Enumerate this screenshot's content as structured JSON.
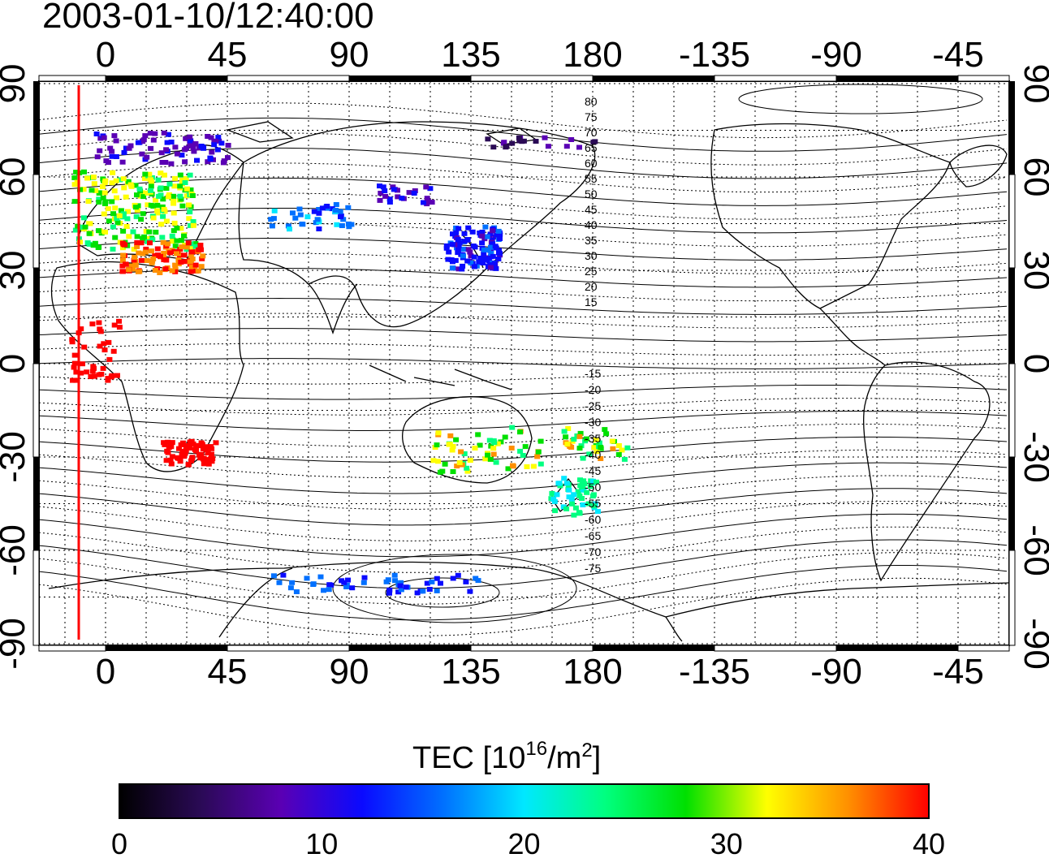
{
  "title": "2003-01-10/12:40:00",
  "map": {
    "lon_ticks": [
      "0",
      "45",
      "90",
      "135",
      "180",
      "-135",
      "-90",
      "-45"
    ],
    "lat_ticks_left": [
      "90",
      "60",
      "30",
      "0",
      "-30",
      "-60",
      "-90"
    ],
    "lat_ticks_right": [
      "90",
      "60",
      "30",
      "0",
      "-30",
      "-60",
      "-90"
    ],
    "terminator_color": "#ff0000",
    "contour_labels_north": [
      "80",
      "75",
      "70",
      "65",
      "60",
      "55",
      "50",
      "45",
      "40",
      "35",
      "30",
      "25",
      "20",
      "15"
    ],
    "contour_labels_south": [
      "-15",
      "-20",
      "-25",
      "-30",
      "-35",
      "-40",
      "-45",
      "-50",
      "-55",
      "-60",
      "-65",
      "-70",
      "-75"
    ]
  },
  "colorbar": {
    "title_main": "TEC  [10",
    "title_sup1": "16",
    "title_mid": "/m",
    "title_sup2": "2",
    "title_end": "]",
    "ticks": [
      "0",
      "10",
      "20",
      "30",
      "40"
    ],
    "colors": [
      "#000000",
      "#2a0a55",
      "#5a00b4",
      "#0a0aff",
      "#0070ff",
      "#00e8ff",
      "#00ff80",
      "#00e000",
      "#ffff00",
      "#ff9000",
      "#ff0000"
    ]
  }
}
